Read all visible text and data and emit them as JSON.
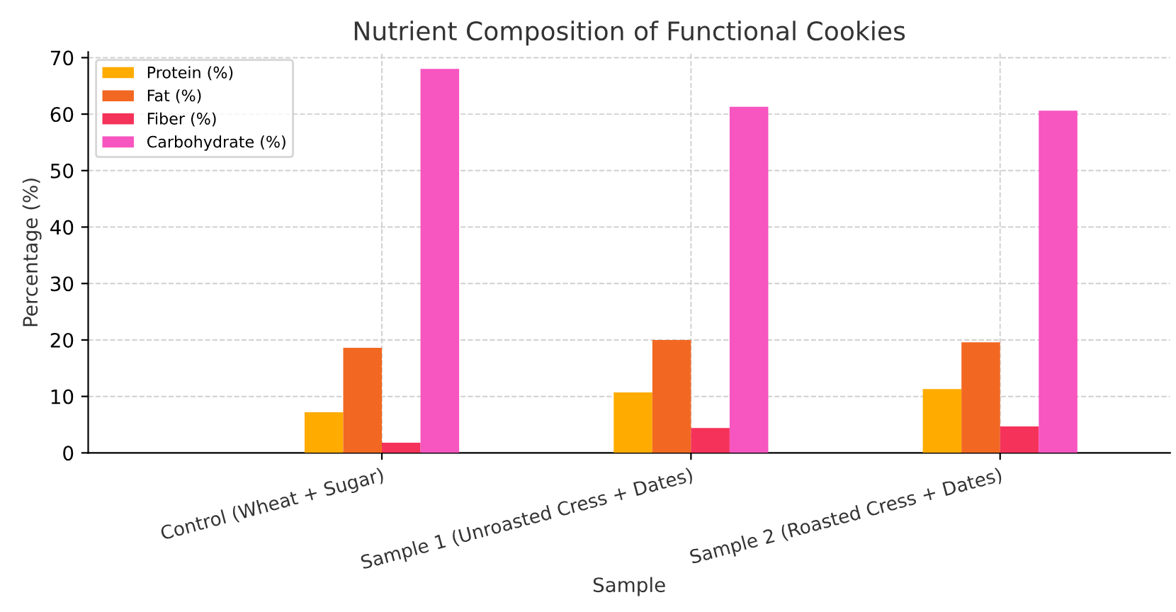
{
  "chart_data": {
    "type": "bar",
    "title": "Nutrient Composition of Functional Cookies",
    "xlabel": "Sample",
    "ylabel": "Percentage (%)",
    "categories": [
      "Control (Wheat + Sugar)",
      "Sample 1 (Unroasted Cress + Dates)",
      "Sample 2 (Roasted Cress + Dates)"
    ],
    "series": [
      {
        "name": "Protein (%)",
        "color": "#ffab00",
        "values": [
          7.2,
          10.7,
          11.3
        ]
      },
      {
        "name": "Fat (%)",
        "color": "#f26822",
        "values": [
          18.6,
          20.0,
          19.6
        ]
      },
      {
        "name": "Fiber (%)",
        "color": "#f5325a",
        "values": [
          1.8,
          4.4,
          4.7
        ]
      },
      {
        "name": "Carbohydrate (%)",
        "color": "#f755c0",
        "values": [
          68.0,
          61.3,
          60.6
        ]
      }
    ],
    "ylim": [
      0,
      71
    ],
    "yticks": [
      0,
      10,
      20,
      30,
      40,
      50,
      60,
      70
    ],
    "grid": true,
    "legend": "top left"
  }
}
